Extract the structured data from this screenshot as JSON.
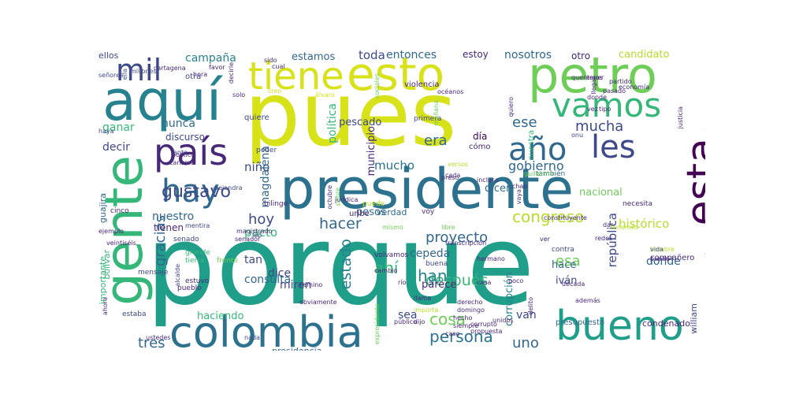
{
  "palette": {
    "background": "#ffffff",
    "colors": [
      "#fde725",
      "#b5de2b",
      "#6ece58",
      "#35b779",
      "#1f9e89",
      "#26828e",
      "#31688e",
      "#3e4989",
      "#482878",
      "#440154"
    ]
  },
  "words": [
    {
      "text": "porque",
      "c": "#1f9e89"
    },
    {
      "text": "pues",
      "c": "#d8e219"
    },
    {
      "text": "presidente",
      "c": "#2c728e"
    },
    {
      "text": "aquí",
      "c": "#26828e"
    },
    {
      "text": "esto",
      "c": "#d8e219"
    },
    {
      "text": "tiene",
      "c": "#d8e219"
    },
    {
      "text": "petro",
      "c": "#6ece58"
    },
    {
      "text": "gente",
      "c": "#35b779"
    },
    {
      "text": "colombia",
      "c": "#2c728e"
    },
    {
      "text": "bueno",
      "c": "#1f9e89"
    },
    {
      "text": "vamos",
      "c": "#35b779"
    },
    {
      "text": "año",
      "c": "#31688e"
    },
    {
      "text": "les",
      "c": "#3e4989"
    },
    {
      "text": "país",
      "c": "#482878"
    },
    {
      "text": "hay",
      "c": "#31688e"
    },
    {
      "text": "esta",
      "c": "#440154"
    },
    {
      "text": "mil",
      "c": "#3e4989"
    },
    {
      "text": "gustavo",
      "c": "#3e4989"
    },
    {
      "text": "congreso",
      "c": "#b5de2b"
    },
    {
      "text": "cosa",
      "c": "#6ece58"
    },
    {
      "text": "persona",
      "c": "#2c728e"
    },
    {
      "text": "gobierno",
      "c": "#31688e"
    },
    {
      "text": "tres",
      "c": "#31688e"
    },
    {
      "text": "hacer",
      "c": "#31688e"
    },
    {
      "text": "hoy",
      "c": "#3e4989"
    },
    {
      "text": "mucha",
      "c": "#3e4989"
    },
    {
      "text": "ese",
      "c": "#31688e"
    },
    {
      "text": "era",
      "c": "#31688e"
    },
    {
      "text": "estado",
      "c": "#26828e"
    },
    {
      "text": "gracias",
      "c": "#31688e"
    },
    {
      "text": "proyecto",
      "c": "#31688e"
    },
    {
      "text": "nuestro",
      "c": "#31688e"
    },
    {
      "text": "niño",
      "c": "#3e4989"
    },
    {
      "text": "mucho",
      "c": "#2c728e"
    },
    {
      "text": "ganar",
      "c": "#35b779"
    },
    {
      "text": "nunca",
      "c": "#31688e"
    },
    {
      "text": "decir",
      "c": "#3e4989"
    },
    {
      "text": "pesos",
      "c": "#31688e"
    },
    {
      "text": "dicen",
      "c": "#31688e"
    },
    {
      "text": "ahí",
      "c": "#35b779"
    },
    {
      "text": "después",
      "c": "#35b779"
    },
    {
      "text": "han",
      "c": "#26828e"
    },
    {
      "text": "uno",
      "c": "#31688e"
    },
    {
      "text": "esa",
      "c": "#6ece58"
    },
    {
      "text": "república",
      "c": "#3e4989"
    },
    {
      "text": "histórico",
      "c": "#b5de2b"
    },
    {
      "text": "nacional",
      "c": "#6ece58"
    },
    {
      "text": "candidato",
      "c": "#b5de2b"
    },
    {
      "text": "toda",
      "c": "#3e4989"
    },
    {
      "text": "entonces",
      "c": "#31688e"
    },
    {
      "text": "estoy",
      "c": "#482878"
    },
    {
      "text": "nosotros",
      "c": "#31688e"
    },
    {
      "text": "otro",
      "c": "#482878"
    },
    {
      "text": "estamos",
      "c": "#31688e"
    },
    {
      "text": "campaña",
      "c": "#26828e"
    },
    {
      "text": "ellos",
      "c": "#3e4989"
    },
    {
      "text": "discurso",
      "c": "#3e4989"
    },
    {
      "text": "magdalena",
      "c": "#31688e"
    },
    {
      "text": "política",
      "c": "#35b779"
    },
    {
      "text": "pescado",
      "c": "#3e4989"
    },
    {
      "text": "municipio",
      "c": "#482878"
    },
    {
      "text": "otra",
      "c": "#3e4989"
    },
    {
      "text": "pacto",
      "c": "#35b779"
    },
    {
      "text": "consulta",
      "c": "#31688e"
    },
    {
      "text": "tan",
      "c": "#3e4989"
    },
    {
      "text": "dice",
      "c": "#3e4989"
    },
    {
      "text": "miren",
      "c": "#3e4989"
    },
    {
      "text": "parece",
      "c": "#482878"
    },
    {
      "text": "corrupción",
      "c": "#26828e"
    },
    {
      "text": "hace",
      "c": "#31688e"
    },
    {
      "text": "iván",
      "c": "#3e4989"
    },
    {
      "text": "donde",
      "c": "#31688e"
    },
    {
      "text": "haciendo",
      "c": "#35b779"
    },
    {
      "text": "cepeda",
      "c": "#31688e"
    },
    {
      "text": "sea",
      "c": "#3e4989"
    },
    {
      "text": "van",
      "c": "#3e4989"
    },
    {
      "text": "presidencia",
      "c": "#31688e"
    },
    {
      "text": "importante",
      "c": "#35b779"
    },
    {
      "text": "tienen",
      "c": "#482878"
    },
    {
      "text": "guajira",
      "c": "#31688e"
    },
    {
      "text": "bolívar",
      "c": "#35b779"
    },
    {
      "text": "uribe",
      "c": "#482878"
    },
    {
      "text": "verdad",
      "c": "#31688e"
    },
    {
      "text": "william",
      "c": "#3e4989"
    },
    {
      "text": "día",
      "c": "#440154"
    },
    {
      "text": "cómo",
      "c": "#482878"
    },
    {
      "text": "nuestra",
      "c": "#35b779"
    },
    {
      "text": "violencia",
      "c": "#482878"
    },
    {
      "text": "también",
      "c": "#31688e"
    },
    {
      "text": "condenado",
      "c": "#482878"
    },
    {
      "text": "presupuesto",
      "c": "#31688e"
    },
    {
      "text": "poder",
      "c": "#3e4989"
    },
    {
      "text": "quiere",
      "c": "#3e4989"
    },
    {
      "text": "primera",
      "c": "#3e4989"
    },
    {
      "text": "mañana",
      "c": "#6ece58"
    },
    {
      "text": "necesita",
      "c": "#482878"
    },
    {
      "text": "segundo",
      "c": "#6ece58"
    },
    {
      "text": "encuesta",
      "c": "#31688e"
    },
    {
      "text": "compañero",
      "c": "#482878"
    },
    {
      "text": "hombre",
      "c": "#b5de2b"
    },
    {
      "text": "hermano",
      "c": "#482878"
    },
    {
      "text": "contra",
      "c": "#3e4989"
    },
    {
      "text": "frente",
      "c": "#6ece58"
    },
    {
      "text": "grande",
      "c": "#35b779"
    },
    {
      "text": "tierra",
      "c": "#35b779"
    },
    {
      "text": "estuvo",
      "c": "#482878"
    },
    {
      "text": "pueblo",
      "c": "#482878"
    },
    {
      "text": "mensaje",
      "c": "#3e4989"
    },
    {
      "text": "estaba",
      "c": "#3e4989"
    },
    {
      "text": "nada",
      "c": "#3e4989"
    },
    {
      "text": "ustedes",
      "c": "#482878"
    },
    {
      "text": "caso",
      "c": "#482878"
    },
    {
      "text": "siempre",
      "c": "#482878"
    },
    {
      "text": "hecho",
      "c": "#482878"
    },
    {
      "text": "domingo",
      "c": "#482878"
    },
    {
      "text": "derecho",
      "c": "#482878"
    },
    {
      "text": "propuesta",
      "c": "#482878"
    },
    {
      "text": "corrupto",
      "c": "#482878"
    },
    {
      "text": "casa",
      "c": "#482878"
    },
    {
      "text": "buena",
      "c": "#3e4989"
    },
    {
      "text": "libre",
      "c": "#6ece58"
    },
    {
      "text": "senado",
      "c": "#3e4989"
    },
    {
      "text": "mentira",
      "c": "#3e4989"
    },
    {
      "text": "senador",
      "c": "#482878"
    },
    {
      "text": "magistrado",
      "c": "#482878"
    },
    {
      "text": "cinco",
      "c": "#482878"
    },
    {
      "text": "ejemplo",
      "c": "#482878"
    },
    {
      "text": "veintiséis",
      "c": "#482878"
    },
    {
      "text": "alejandra",
      "c": "#3e4989"
    },
    {
      "text": "bilinge",
      "c": "#482878"
    },
    {
      "text": "puede",
      "c": "#b5de2b"
    },
    {
      "text": "jurídica",
      "c": "#482878"
    },
    {
      "text": "pobre",
      "c": "#6ece58"
    },
    {
      "text": "octubre",
      "c": "#482878"
    },
    {
      "text": "voy",
      "c": "#482878"
    },
    {
      "text": "versos",
      "c": "#b5de2b"
    },
    {
      "text": "mismo",
      "c": "#6ece58"
    },
    {
      "text": "volvamos",
      "c": "#482878"
    },
    {
      "text": "dijo",
      "c": "#482878"
    },
    {
      "text": "público",
      "c": "#482878"
    },
    {
      "text": "llama",
      "c": "#482878"
    },
    {
      "text": "cambio",
      "c": "#482878"
    },
    {
      "text": "río",
      "c": "#482878"
    },
    {
      "text": "camino",
      "c": "#482878"
    },
    {
      "text": "expresidente",
      "c": "#6ece58"
    },
    {
      "text": "obviamente",
      "c": "#482878"
    },
    {
      "text": "importa",
      "c": "#b5de2b"
    },
    {
      "text": "ahora",
      "c": "#482878"
    },
    {
      "text": "alcalde",
      "c": "#3e4989"
    },
    {
      "text": "jep",
      "c": "#3e4989"
    },
    {
      "text": "haya",
      "c": "#3e4989"
    },
    {
      "text": "ante",
      "c": "#3e4989"
    },
    {
      "text": "carisma",
      "c": "#482878"
    },
    {
      "text": "político",
      "c": "#482878"
    },
    {
      "text": "preso",
      "c": "#482878"
    },
    {
      "text": "cada",
      "c": "#482878"
    },
    {
      "text": "chao",
      "c": "#482878"
    },
    {
      "text": "vaya",
      "c": "#482878"
    },
    {
      "text": "incluso",
      "c": "#482878"
    },
    {
      "text": "delito",
      "c": "#482878"
    },
    {
      "text": "poco",
      "c": "#482878"
    },
    {
      "text": "ver",
      "c": "#482878"
    },
    {
      "text": "constituyente",
      "c": "#482878"
    },
    {
      "text": "transcripción",
      "c": "#482878"
    },
    {
      "text": "unidos",
      "c": "#482878"
    },
    {
      "text": "década",
      "c": "#482878"
    },
    {
      "text": "además",
      "c": "#482878"
    },
    {
      "text": "dar",
      "c": "#482878"
    },
    {
      "text": "redes",
      "c": "#482878"
    },
    {
      "text": "tenemos",
      "c": "#b5de2b"
    },
    {
      "text": "puedo",
      "c": "#482878"
    },
    {
      "text": "vida",
      "c": "#3e4989"
    },
    {
      "text": "onu",
      "c": "#3e4989"
    },
    {
      "text": "guillermo",
      "c": "#6ece58"
    },
    {
      "text": "queremos",
      "c": "#482878"
    },
    {
      "text": "llegar",
      "c": "#482878"
    },
    {
      "text": "donde",
      "c": "#482878"
    },
    {
      "text": "tipo",
      "c": "#482878"
    },
    {
      "text": "vez",
      "c": "#482878"
    },
    {
      "text": "tener",
      "c": "#482878"
    },
    {
      "text": "partido",
      "c": "#482878"
    },
    {
      "text": "economía",
      "c": "#482878"
    },
    {
      "text": "pasado",
      "c": "#482878"
    },
    {
      "text": "justicia",
      "c": "#482878"
    },
    {
      "text": "quiero",
      "c": "#482878"
    },
    {
      "text": "océanos",
      "c": "#482878"
    },
    {
      "text": "sociales",
      "c": "#6ece58"
    },
    {
      "text": "sido",
      "c": "#482878"
    },
    {
      "text": "cual",
      "c": "#482878"
    },
    {
      "text": "decirle",
      "c": "#482878"
    },
    {
      "text": "favor",
      "c": "#482878"
    },
    {
      "text": "hora",
      "c": "#482878"
    },
    {
      "text": "cartagena",
      "c": "#482878"
    },
    {
      "text": "millones",
      "c": "#3e4989"
    },
    {
      "text": "señores",
      "c": "#3e4989"
    },
    {
      "text": "ella",
      "c": "#3e4989"
    },
    {
      "text": "solo",
      "c": "#482878"
    },
    {
      "text": "creo",
      "c": "#d8e219"
    },
    {
      "text": "álvaro",
      "c": "#d8e219"
    }
  ]
}
